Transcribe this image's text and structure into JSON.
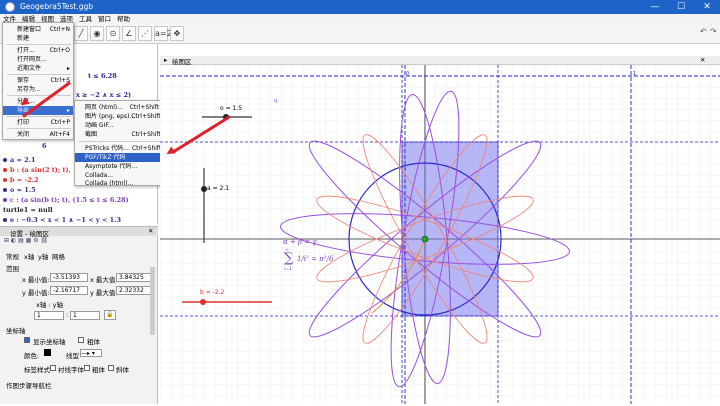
{
  "window": {
    "title": "Geogebra5Test.ggb",
    "minimize": "—",
    "maximize": "☐",
    "close": "✕"
  },
  "menubar": [
    "文件",
    "编辑",
    "视图",
    "选项",
    "工具",
    "窗口",
    "帮助"
  ],
  "file_menu": {
    "items": [
      {
        "label": "新建窗口",
        "shortcut": "Ctrl+N"
      },
      {
        "label": "新建",
        "shortcut": ""
      },
      {
        "label": "打开...",
        "shortcut": "Ctrl+O"
      },
      {
        "label": "打开网页...",
        "shortcut": ""
      },
      {
        "label": "近期文件",
        "shortcut": "▸"
      },
      {
        "label": "保存",
        "shortcut": "Ctrl+S"
      },
      {
        "label": "另存为...",
        "shortcut": ""
      },
      {
        "label": "分享...",
        "shortcut": ""
      },
      {
        "label": "导出",
        "shortcut": "▸"
      },
      {
        "label": "打印",
        "shortcut": "Ctrl+P"
      },
      {
        "label": "关闭",
        "shortcut": "Alt+F4"
      }
    ]
  },
  "export_submenu": {
    "items": [
      {
        "label": "网页 (html)...",
        "shortcut": "Ctrl+Shift+W"
      },
      {
        "label": "图片 (png, eps)...",
        "shortcut": "Ctrl+Shift+U"
      },
      {
        "label": "动画 GIF...",
        "shortcut": ""
      },
      {
        "label": "截图",
        "shortcut": "Ctrl+Shift+C"
      },
      {
        "label": "PSTricks 代码...",
        "shortcut": "Ctrl+Shift+T"
      },
      {
        "label": "PGF/TikZ 代码",
        "shortcut": ""
      },
      {
        "label": "Asymptote 代码...",
        "shortcut": ""
      },
      {
        "label": "Collada...",
        "shortcut": ""
      },
      {
        "label": "Collada (html)...",
        "shortcut": ""
      }
    ]
  },
  "algebra": {
    "partial_lines": [
      "t ≤ 6.28",
      "x ≥ −2 ∧ x ≤ 2)",
      "π²",
      "6"
    ],
    "rows": [
      {
        "text": "a = 2.1",
        "color": "#303090"
      },
      {
        "text": "b : (a sin(2 t); t),",
        "color": "#e03030"
      },
      {
        "text": "b = -2.2",
        "color": "#e03030"
      },
      {
        "text": "o = 1.5",
        "color": "#303090"
      },
      {
        "text": "c : (a sin(b t); t),    (1.5 ≤ t ≤ 6.28)",
        "color": "#7a3db8"
      },
      {
        "text": "turtle1 = null",
        "color": "#303090"
      },
      {
        "text": "e : −0.3 < x < 1 ∧ −1 < y < 1.3",
        "color": "#303090"
      }
    ]
  },
  "settings": {
    "title": "设置 - 绘图区",
    "tabs": [
      "常规",
      "x轴",
      "y轴",
      "网格"
    ],
    "range_label": "范围",
    "xmin_label": "x 最小值:",
    "xmin": "-3.51393",
    "xmax_label": "x 最大值:",
    "xmax": "3.84325",
    "ymin_label": "y 最小值:",
    "ymin": "-2.16717",
    "ymax_label": "y 最大值:",
    "ymax": "2.32332",
    "ratio_label": "x轴 : y轴",
    "ratio_x": "1",
    "ratio_y": "1",
    "axes_label": "坐标轴",
    "show_axes": "显示坐标轴",
    "bold": "粗体",
    "color_label": "颜色:",
    "linetype_label": "线型",
    "label_style": "标签样式",
    "serif": "衬线字体",
    "bold2": "粗体",
    "italic": "斜体",
    "footer": "作图步骤导航栏"
  },
  "graphics": {
    "header": "绘图区",
    "slider_o": "o = 1.5",
    "slider_a": "a = 2.1",
    "slider_b": "b = -2.2",
    "formula_top": "α + β = γ",
    "formula_sum": "∑",
    "formula_top_idx": "∞",
    "formula_bottom_idx": "i=1",
    "formula_frac": "1/i² = π²/6",
    "axis_zero": "0",
    "axis_label_1": "1",
    "axis_label_q": "q"
  },
  "colors": {
    "accent": "#1e63c7",
    "highlight": "#2e62c8",
    "annotation": "#e0202a"
  }
}
